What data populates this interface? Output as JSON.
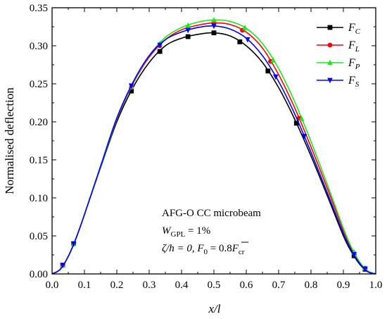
{
  "chart_data": {
    "type": "line",
    "xlabel": "x/l",
    "ylabel": "Normalised deflection",
    "xlim": [
      0,
      1.0
    ],
    "ylim": [
      0,
      0.35
    ],
    "x_ticks": [
      "0.0",
      "0.1",
      "0.2",
      "0.3",
      "0.4",
      "0.5",
      "0.6",
      "0.7",
      "0.8",
      "0.9",
      "1.0"
    ],
    "y_ticks": [
      "0.00",
      "0.05",
      "0.10",
      "0.15",
      "0.20",
      "0.25",
      "0.30",
      "0.35"
    ],
    "grid": false,
    "legend_position": "top-right",
    "series": [
      {
        "name": "F_C",
        "legend_main": "F",
        "legend_sub": "C",
        "color": "#000000",
        "marker": "square",
        "x": [
          0,
          0.025,
          0.05,
          0.075,
          0.1,
          0.15,
          0.2,
          0.25,
          0.3,
          0.35,
          0.4,
          0.45,
          0.5,
          0.55,
          0.6,
          0.65,
          0.7,
          0.75,
          0.8,
          0.85,
          0.9,
          0.925,
          0.95,
          0.975,
          1.0
        ],
        "y": [
          0,
          0.006,
          0.023,
          0.048,
          0.078,
          0.14,
          0.2,
          0.245,
          0.278,
          0.3,
          0.31,
          0.315,
          0.317,
          0.313,
          0.3,
          0.278,
          0.245,
          0.203,
          0.155,
          0.103,
          0.05,
          0.029,
          0.013,
          0.003,
          0
        ]
      },
      {
        "name": "F_L",
        "legend_main": "F",
        "legend_sub": "L",
        "color": "#ff0000",
        "marker": "circle",
        "x": [
          0,
          0.025,
          0.05,
          0.075,
          0.1,
          0.15,
          0.2,
          0.25,
          0.3,
          0.35,
          0.4,
          0.45,
          0.5,
          0.55,
          0.6,
          0.65,
          0.7,
          0.75,
          0.8,
          0.85,
          0.9,
          0.925,
          0.95,
          0.975,
          1.0
        ],
        "y": [
          0,
          0.006,
          0.023,
          0.048,
          0.078,
          0.141,
          0.203,
          0.25,
          0.285,
          0.308,
          0.321,
          0.327,
          0.33,
          0.328,
          0.318,
          0.297,
          0.262,
          0.218,
          0.167,
          0.113,
          0.057,
          0.033,
          0.015,
          0.004,
          0
        ]
      },
      {
        "name": "F_P",
        "legend_main": "F",
        "legend_sub": "P",
        "color": "#1fe61f",
        "marker": "triangle-up",
        "x": [
          0,
          0.025,
          0.05,
          0.075,
          0.1,
          0.15,
          0.2,
          0.25,
          0.3,
          0.35,
          0.4,
          0.45,
          0.5,
          0.55,
          0.6,
          0.65,
          0.7,
          0.75,
          0.8,
          0.85,
          0.9,
          0.925,
          0.95,
          0.975,
          1.0
        ],
        "y": [
          0,
          0.006,
          0.023,
          0.048,
          0.078,
          0.141,
          0.204,
          0.251,
          0.287,
          0.311,
          0.324,
          0.331,
          0.334,
          0.332,
          0.323,
          0.303,
          0.27,
          0.226,
          0.174,
          0.118,
          0.06,
          0.035,
          0.016,
          0.004,
          0
        ]
      },
      {
        "name": "F_S",
        "legend_main": "F",
        "legend_sub": "S",
        "color": "#0000ff",
        "marker": "triangle-down",
        "x": [
          0,
          0.025,
          0.05,
          0.075,
          0.1,
          0.15,
          0.2,
          0.25,
          0.3,
          0.35,
          0.4,
          0.45,
          0.5,
          0.55,
          0.6,
          0.65,
          0.7,
          0.75,
          0.8,
          0.85,
          0.9,
          0.925,
          0.95,
          0.975,
          1.0
        ],
        "y": [
          0,
          0.006,
          0.023,
          0.048,
          0.078,
          0.142,
          0.205,
          0.252,
          0.287,
          0.308,
          0.318,
          0.324,
          0.326,
          0.322,
          0.31,
          0.287,
          0.253,
          0.21,
          0.16,
          0.107,
          0.053,
          0.031,
          0.014,
          0.003,
          0
        ]
      }
    ],
    "annotations": {
      "line1": "AFG-O CC microbeam",
      "line2_main": "W",
      "line2_sub": "GPL",
      "line2_rest": " = 1%",
      "line3_part1": "ζ/h = 0, F",
      "line3_sub0": "0",
      "line3_part2": " = 0.8",
      "line3_F": "F",
      "line3_sub_cr": "cr"
    }
  }
}
